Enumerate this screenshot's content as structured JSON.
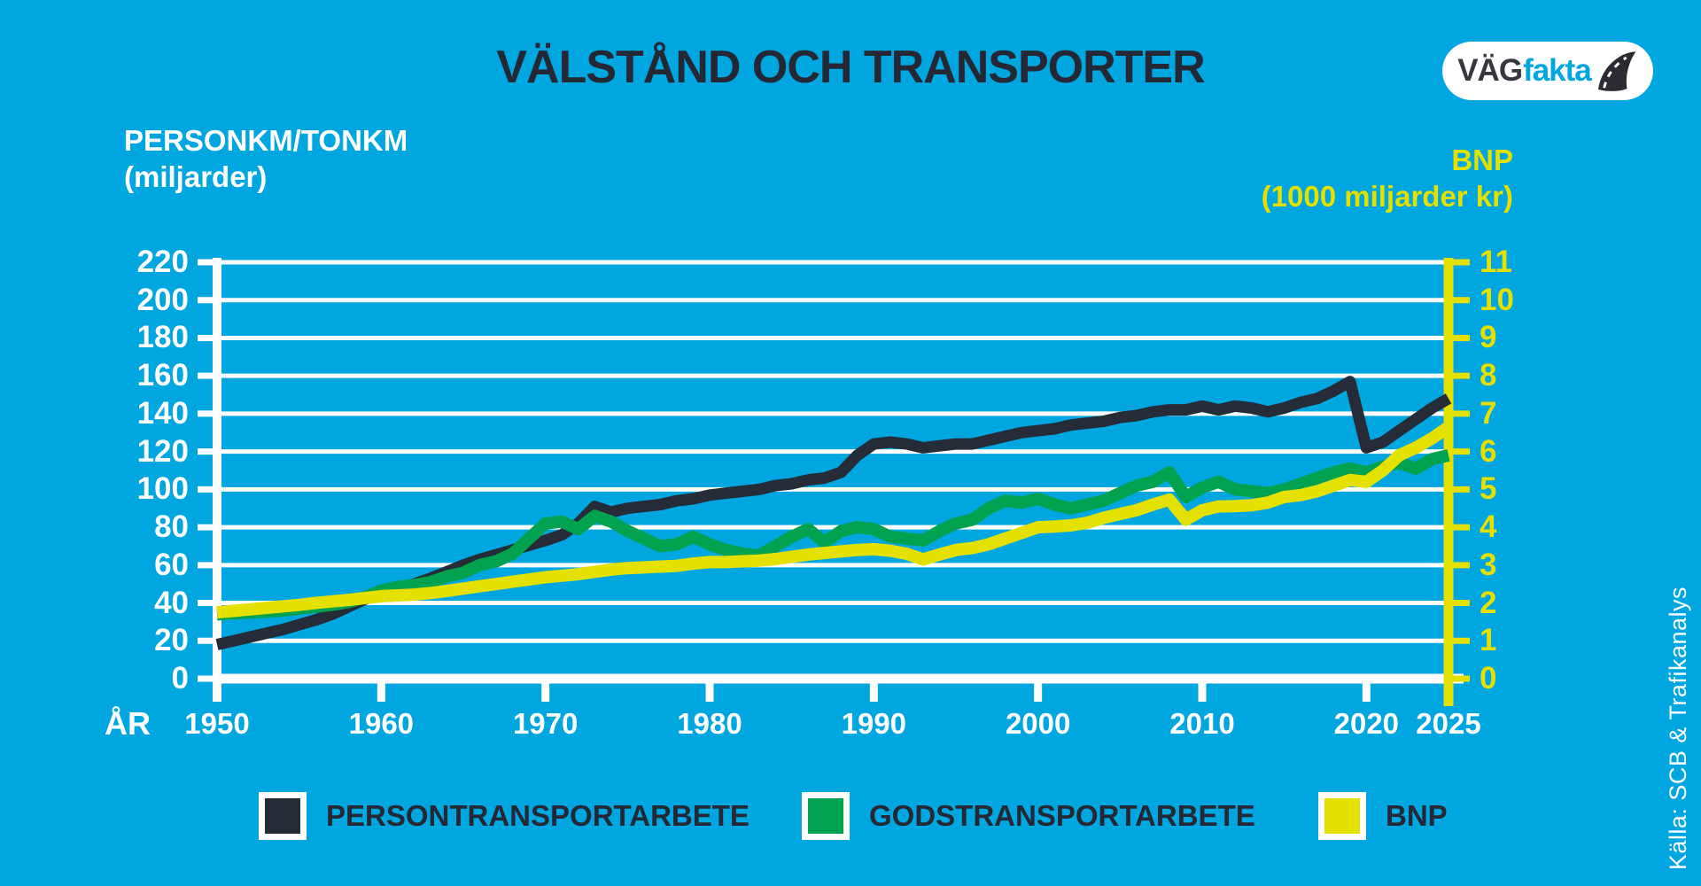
{
  "title": "VÄLSTÅND OCH TRANSPORTER",
  "logo": {
    "brand_prefix": "VÄG",
    "brand_suffix": "fakta"
  },
  "axes": {
    "left": {
      "title_line1": "PERSONKM/TONKM",
      "title_line2": "(miljarder)",
      "tick_values": [
        0,
        20,
        40,
        60,
        80,
        100,
        120,
        140,
        160,
        180,
        200,
        220
      ]
    },
    "right": {
      "title_line1": "BNP",
      "title_line2": "(1000 miljarder kr)",
      "tick_values": [
        0,
        1,
        2,
        3,
        4,
        5,
        6,
        7,
        8,
        9,
        10,
        11
      ]
    },
    "x": {
      "label": "ÅR",
      "tick_years": [
        1950,
        1960,
        1970,
        1980,
        1990,
        2000,
        2010,
        2020,
        2025
      ],
      "tick_labels": [
        "1950",
        "1960",
        "1970",
        "1980",
        "1990",
        "2000",
        "2010",
        "2020",
        "2025"
      ]
    }
  },
  "legend": [
    {
      "label": "PERSONTRANSPORTARBETE",
      "color": "#252B37"
    },
    {
      "label": "GODSTRANSPORTARBETE",
      "color": "#00A24F"
    },
    {
      "label": "BNP",
      "color": "#E4E000"
    }
  ],
  "source": "Källa: SCB & Trafikanalys",
  "colors": {
    "background": "#00A6E0",
    "title": "#232834",
    "white": "#FFFFFF",
    "dark_line": "#252B37",
    "green_line": "#00A24F",
    "yellow_line": "#E4E000"
  },
  "chart_data": {
    "type": "line",
    "title": "VÄLSTÅND OCH TRANSPORTER",
    "xlabel": "ÅR",
    "ylabel_left": "PERSONKM/TONKM (miljarder)",
    "ylabel_right": "BNP (1000 miljarder kr)",
    "left_ylim": [
      0,
      220
    ],
    "right_ylim": [
      0,
      11
    ],
    "xlim": [
      1950,
      2025
    ],
    "grid": true,
    "legend_position": "bottom",
    "x": [
      1950,
      1951,
      1952,
      1953,
      1954,
      1955,
      1956,
      1957,
      1958,
      1959,
      1960,
      1961,
      1962,
      1963,
      1964,
      1965,
      1966,
      1967,
      1968,
      1969,
      1970,
      1971,
      1972,
      1973,
      1974,
      1975,
      1976,
      1977,
      1978,
      1979,
      1980,
      1981,
      1982,
      1983,
      1984,
      1985,
      1986,
      1987,
      1988,
      1989,
      1990,
      1991,
      1992,
      1993,
      1994,
      1995,
      1996,
      1997,
      1998,
      1999,
      2000,
      2001,
      2002,
      2003,
      2004,
      2005,
      2006,
      2007,
      2008,
      2009,
      2010,
      2011,
      2012,
      2013,
      2014,
      2015,
      2016,
      2017,
      2018,
      2019,
      2020,
      2021,
      2022,
      2023,
      2024,
      2025
    ],
    "series": [
      {
        "name": "PERSONTRANSPORTARBETE",
        "axis": "left",
        "color": "#252B37",
        "stroke_width": 13,
        "values": [
          18,
          20,
          22,
          24,
          26,
          28.5,
          31,
          34,
          38,
          42,
          44.5,
          47,
          50,
          53,
          56.5,
          60,
          63,
          65.5,
          68,
          70.5,
          73,
          76,
          82,
          91,
          88,
          90,
          91,
          92,
          94,
          95,
          97,
          98,
          99,
          100,
          102,
          103,
          105,
          106,
          109,
          118,
          124,
          125,
          124,
          122,
          123,
          124,
          124,
          126,
          128,
          130,
          131,
          132,
          134,
          135,
          136,
          138,
          139,
          141,
          142,
          142,
          144,
          142,
          144,
          143,
          141,
          143,
          146,
          148,
          152,
          157,
          122,
          125,
          131,
          137,
          143,
          148
        ]
      },
      {
        "name": "GODSTRANSPORTARBETE",
        "axis": "left",
        "color": "#00A24F",
        "stroke_width": 14,
        "values": [
          34,
          34.5,
          35,
          35.5,
          36,
          37,
          38,
          39,
          40.5,
          43,
          46.5,
          48.5,
          49.5,
          51,
          54,
          56,
          60,
          62,
          66,
          74,
          82,
          83,
          79,
          86,
          83,
          78,
          74,
          70,
          71,
          75,
          71,
          68,
          66,
          65,
          70,
          75,
          79,
          72,
          78,
          80,
          79,
          75,
          74,
          73,
          78,
          82,
          84,
          90,
          94,
          93,
          95,
          92,
          90,
          92,
          94,
          98,
          102,
          104,
          109,
          96,
          101,
          104,
          100,
          99,
          98,
          100,
          103,
          106,
          109,
          111,
          109,
          112,
          114,
          111,
          116,
          118
        ]
      },
      {
        "name": "BNP",
        "axis": "right",
        "color": "#E4E000",
        "stroke_width": 14,
        "values": [
          1.75,
          1.79,
          1.83,
          1.87,
          1.91,
          1.95,
          2.0,
          2.04,
          2.08,
          2.13,
          2.18,
          2.2,
          2.22,
          2.26,
          2.32,
          2.38,
          2.44,
          2.5,
          2.56,
          2.62,
          2.68,
          2.72,
          2.76,
          2.82,
          2.88,
          2.92,
          2.94,
          2.96,
          2.98,
          3.04,
          3.08,
          3.08,
          3.1,
          3.12,
          3.16,
          3.22,
          3.28,
          3.32,
          3.36,
          3.4,
          3.42,
          3.38,
          3.3,
          3.15,
          3.28,
          3.4,
          3.45,
          3.55,
          3.7,
          3.85,
          4.0,
          4.02,
          4.05,
          4.12,
          4.25,
          4.35,
          4.45,
          4.6,
          4.73,
          4.2,
          4.45,
          4.55,
          4.56,
          4.58,
          4.65,
          4.8,
          4.85,
          4.95,
          5.1,
          5.25,
          5.2,
          5.5,
          5.9,
          6.1,
          6.35,
          6.65
        ]
      }
    ]
  }
}
